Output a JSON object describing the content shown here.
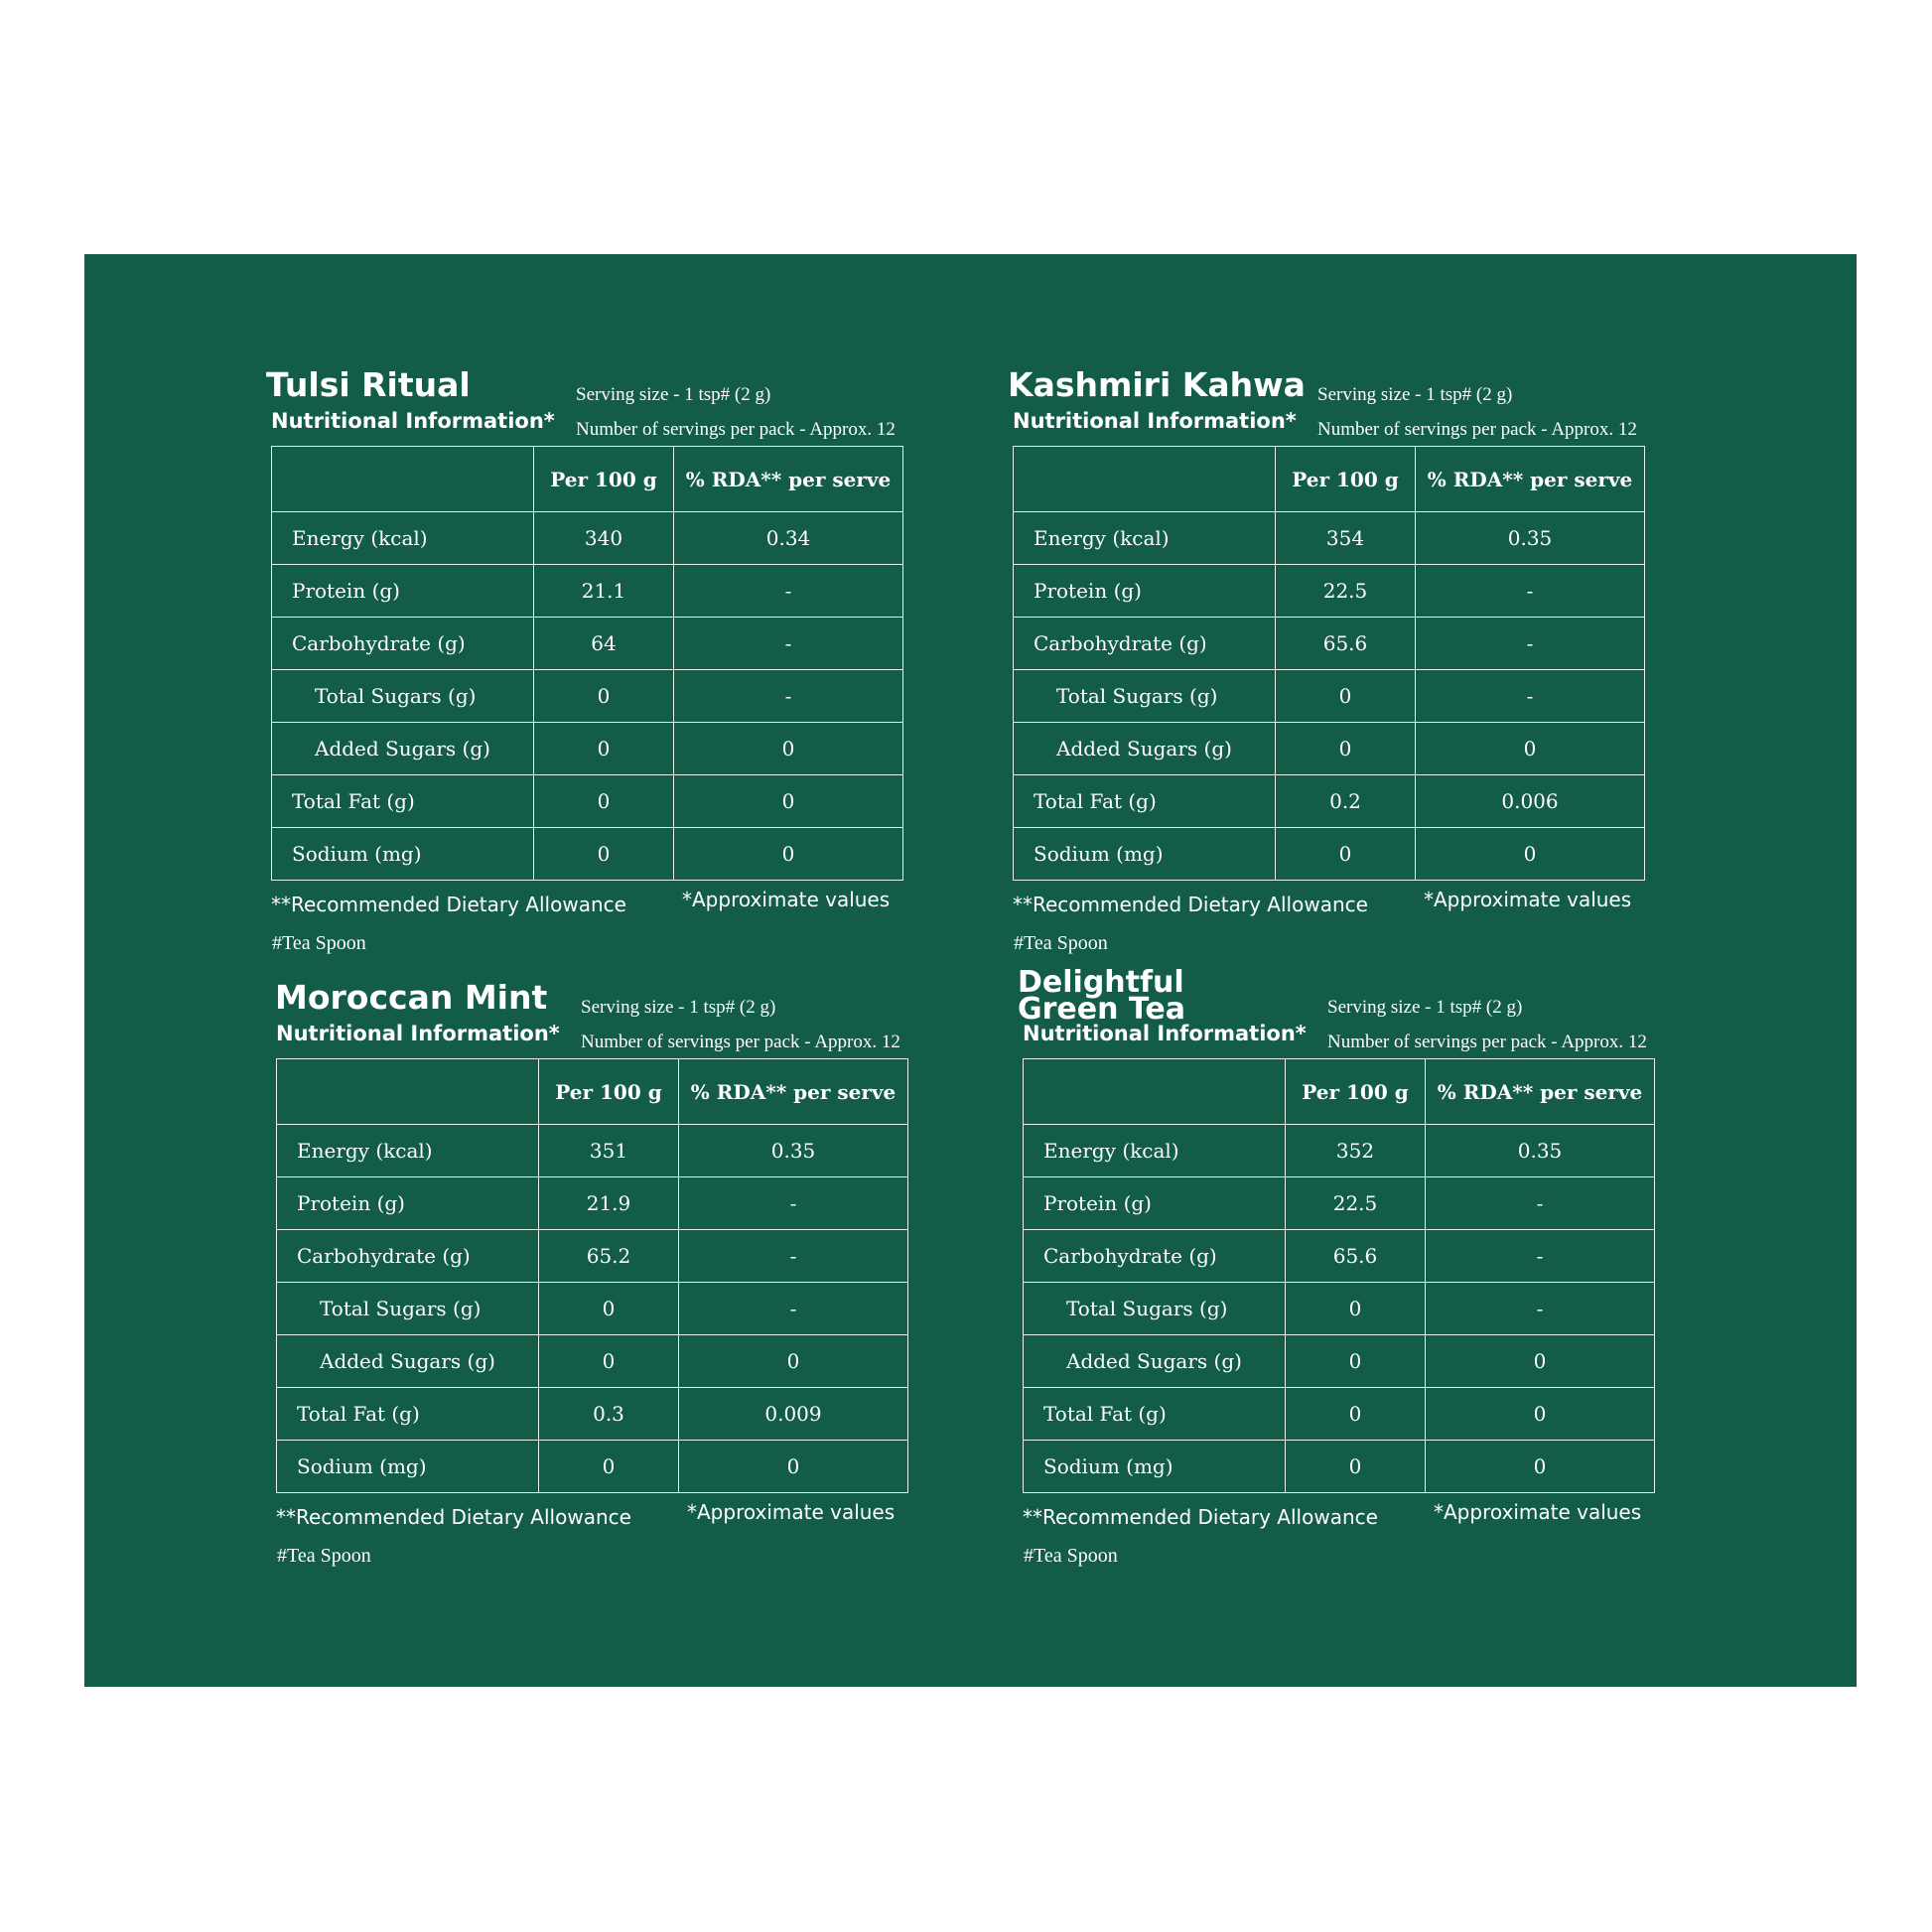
{
  "colors": {
    "background": "#125c48",
    "text": "#ffffff",
    "page": "#ffffff"
  },
  "header": {
    "col_nutrient": "",
    "col_per100": "Per 100 g",
    "col_rda": "% RDA** per serve"
  },
  "panels": [
    {
      "title": "Tulsi Ritual",
      "subtitle": "Nutritional Information*",
      "serving_size": "Serving size - 1 tsp# (2 g)",
      "servings_per_pack": "Number of servings per pack - Approx. 12",
      "rows": [
        {
          "label": "Energy (kcal)",
          "per100": "340",
          "rda": "0.34"
        },
        {
          "label": "Protein (g)",
          "per100": "21.1",
          "rda": "-"
        },
        {
          "label": "Carbohydrate (g)",
          "per100": "64",
          "rda": "-"
        },
        {
          "label": "Total Sugars (g)",
          "per100": "0",
          "rda": "-"
        },
        {
          "label": "Added Sugars (g)",
          "per100": "0",
          "rda": "0"
        },
        {
          "label": "Total Fat (g)",
          "per100": "0",
          "rda": "0"
        },
        {
          "label": "Sodium (mg)",
          "per100": "0",
          "rda": "0"
        }
      ],
      "rda_note": "**Recommended Dietary Allowance",
      "approx_note": "*Approximate values",
      "tsp_note": "#Tea Spoon"
    },
    {
      "title": "Kashmiri Kahwa",
      "subtitle": "Nutritional Information*",
      "serving_size": "Serving size - 1 tsp# (2 g)",
      "servings_per_pack": "Number of servings per pack - Approx. 12",
      "rows": [
        {
          "label": "Energy (kcal)",
          "per100": "354",
          "rda": "0.35"
        },
        {
          "label": "Protein (g)",
          "per100": "22.5",
          "rda": "-"
        },
        {
          "label": "Carbohydrate (g)",
          "per100": "65.6",
          "rda": "-"
        },
        {
          "label": "Total Sugars (g)",
          "per100": "0",
          "rda": "-"
        },
        {
          "label": "Added Sugars (g)",
          "per100": "0",
          "rda": "0"
        },
        {
          "label": "Total Fat (g)",
          "per100": "0.2",
          "rda": "0.006"
        },
        {
          "label": "Sodium (mg)",
          "per100": "0",
          "rda": "0"
        }
      ],
      "rda_note": "**Recommended Dietary Allowance",
      "approx_note": "*Approximate values",
      "tsp_note": "#Tea Spoon"
    },
    {
      "title": "Moroccan Mint",
      "subtitle": "Nutritional Information*",
      "serving_size": "Serving size - 1 tsp# (2 g)",
      "servings_per_pack": "Number of servings per pack - Approx. 12",
      "rows": [
        {
          "label": "Energy (kcal)",
          "per100": "351",
          "rda": "0.35"
        },
        {
          "label": "Protein (g)",
          "per100": "21.9",
          "rda": "-"
        },
        {
          "label": "Carbohydrate (g)",
          "per100": "65.2",
          "rda": "-"
        },
        {
          "label": "Total Sugars (g)",
          "per100": "0",
          "rda": "-"
        },
        {
          "label": "Added Sugars (g)",
          "per100": "0",
          "rda": "0"
        },
        {
          "label": "Total Fat (g)",
          "per100": "0.3",
          "rda": "0.009"
        },
        {
          "label": "Sodium (mg)",
          "per100": "0",
          "rda": "0"
        }
      ],
      "rda_note": "**Recommended Dietary Allowance",
      "approx_note": "*Approximate values",
      "tsp_note": "#Tea Spoon"
    },
    {
      "title": "Delightful Green Tea",
      "subtitle": "Nutritional Information*",
      "serving_size": "Serving size - 1 tsp# (2 g)",
      "servings_per_pack": "Number of servings per pack - Approx. 12",
      "rows": [
        {
          "label": "Energy (kcal)",
          "per100": "352",
          "rda": "0.35"
        },
        {
          "label": "Protein (g)",
          "per100": "22.5",
          "rda": "-"
        },
        {
          "label": "Carbohydrate (g)",
          "per100": "65.6",
          "rda": "-"
        },
        {
          "label": "Total Sugars (g)",
          "per100": "0",
          "rda": "-"
        },
        {
          "label": "Added Sugars (g)",
          "per100": "0",
          "rda": "0"
        },
        {
          "label": "Total Fat (g)",
          "per100": "0",
          "rda": "0"
        },
        {
          "label": "Sodium (mg)",
          "per100": "0",
          "rda": "0"
        }
      ],
      "rda_note": "**Recommended Dietary Allowance",
      "approx_note": "*Approximate values",
      "tsp_note": "#Tea Spoon"
    }
  ]
}
